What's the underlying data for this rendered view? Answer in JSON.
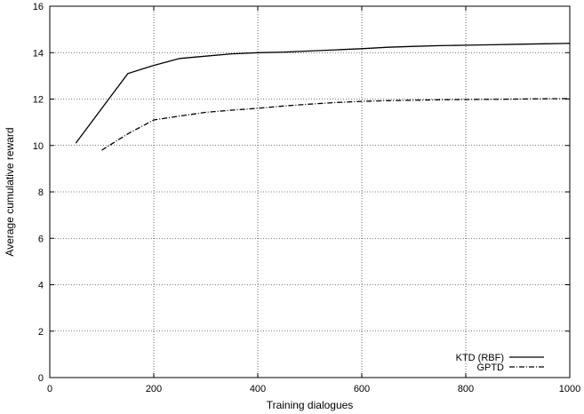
{
  "chart_data": {
    "type": "line",
    "title": "",
    "xlabel": "Training dialogues",
    "ylabel": "Average cumulative reward",
    "xlim": [
      0,
      1000
    ],
    "ylim": [
      0,
      16
    ],
    "xticks": [
      0,
      200,
      400,
      600,
      800,
      1000
    ],
    "yticks": [
      0,
      2,
      4,
      6,
      8,
      10,
      12,
      14,
      16
    ],
    "grid": true,
    "legend_position": "bottom-right",
    "series": [
      {
        "name": "KTD (RBF)",
        "style": "solid",
        "color": "#000000",
        "x": [
          50,
          150,
          200,
          250,
          300,
          350,
          400,
          450,
          500,
          550,
          600,
          650,
          700,
          750,
          800,
          850,
          900,
          950,
          1000
        ],
        "y": [
          10.1,
          13.1,
          13.45,
          13.75,
          13.85,
          13.95,
          14.0,
          14.02,
          14.07,
          14.12,
          14.17,
          14.23,
          14.27,
          14.3,
          14.32,
          14.34,
          14.36,
          14.38,
          14.4
        ]
      },
      {
        "name": "GPTD",
        "style": "dash-dot",
        "color": "#000000",
        "x": [
          100,
          150,
          200,
          250,
          300,
          350,
          400,
          450,
          500,
          550,
          600,
          650,
          700,
          750,
          800,
          850,
          900,
          950,
          1000
        ],
        "y": [
          9.8,
          10.5,
          11.1,
          11.27,
          11.43,
          11.52,
          11.6,
          11.7,
          11.78,
          11.85,
          11.9,
          11.93,
          11.95,
          11.97,
          11.98,
          11.99,
          12.0,
          12.01,
          12.02
        ]
      }
    ]
  }
}
